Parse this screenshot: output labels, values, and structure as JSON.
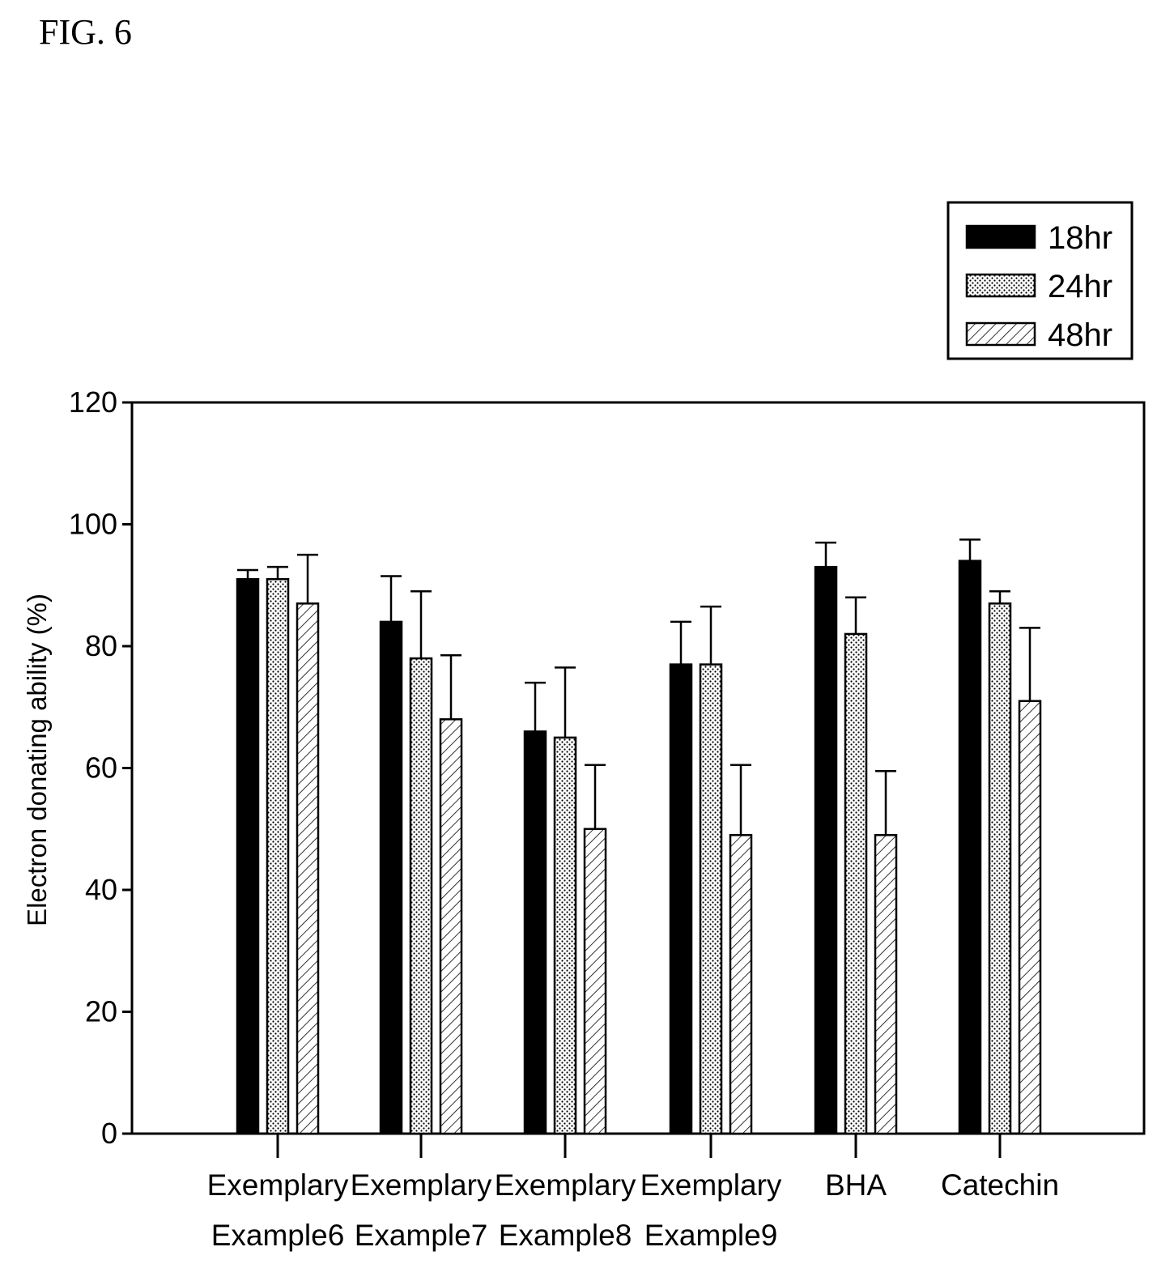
{
  "figure_label": "FIG. 6",
  "chart_data": {
    "type": "bar",
    "title": "",
    "xlabel": "",
    "ylabel": "Electron donating ability (%)",
    "ylim": [
      0,
      120
    ],
    "yticks": [
      0,
      20,
      40,
      60,
      80,
      100,
      120
    ],
    "grid": false,
    "legend_position": "top-right (above plot)",
    "categories": [
      [
        "Exemplary",
        "Example6"
      ],
      [
        "Exemplary",
        "Example7"
      ],
      [
        "Exemplary",
        "Example8"
      ],
      [
        "Exemplary",
        "Example9"
      ],
      [
        "BHA"
      ],
      [
        "Catechin"
      ]
    ],
    "series": [
      {
        "name": "18hr",
        "fill": "solid-black",
        "values": [
          91,
          84,
          66,
          77,
          93,
          94
        ],
        "errors": [
          1.5,
          7.5,
          8,
          7,
          4,
          3.5
        ]
      },
      {
        "name": "24hr",
        "fill": "dotted",
        "values": [
          91,
          78,
          65,
          77,
          82,
          87
        ],
        "errors": [
          2,
          11,
          11.5,
          9.5,
          6,
          2
        ]
      },
      {
        "name": "48hr",
        "fill": "hatched",
        "values": [
          87,
          68,
          50,
          49,
          49,
          71
        ],
        "errors": [
          8,
          10.5,
          10.5,
          11.5,
          10.5,
          12
        ]
      }
    ]
  }
}
